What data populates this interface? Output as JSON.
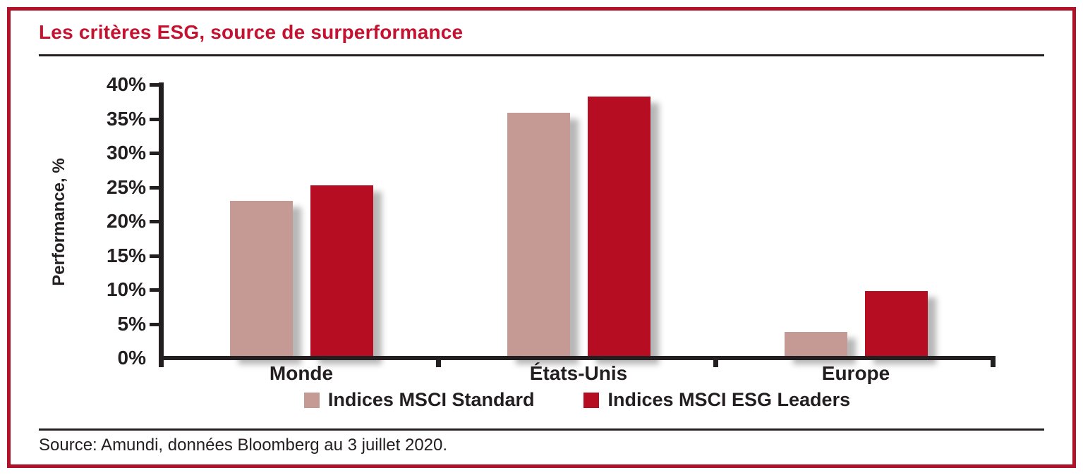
{
  "frame": {
    "border_color": "#b11228"
  },
  "title": {
    "text": "Les critères ESG, source de surperformance",
    "color": "#c41230"
  },
  "source_line": "Source: Amundi, données Bloomberg au 3 juillet 2020.",
  "chart_data": {
    "type": "bar",
    "title": "Les critères ESG, source de surperformance",
    "categories": [
      "Monde",
      "États-Unis",
      "Europe"
    ],
    "series": [
      {
        "name": "Indices MSCI Standard",
        "color": "#c59a94",
        "values": [
          23.0,
          35.9,
          3.8
        ]
      },
      {
        "name": "Indices MSCI ESG Leaders",
        "color": "#b70d23",
        "values": [
          25.3,
          38.2,
          9.8
        ]
      }
    ],
    "xlabel": "",
    "ylabel": "Performance, %",
    "ylim": [
      0,
      40
    ],
    "ytick_step": 5,
    "ytick_labels": [
      "0%",
      "5%",
      "10%",
      "15%",
      "20%",
      "25%",
      "30%",
      "35%",
      "40%"
    ],
    "grid": false,
    "legend_position": "bottom"
  }
}
